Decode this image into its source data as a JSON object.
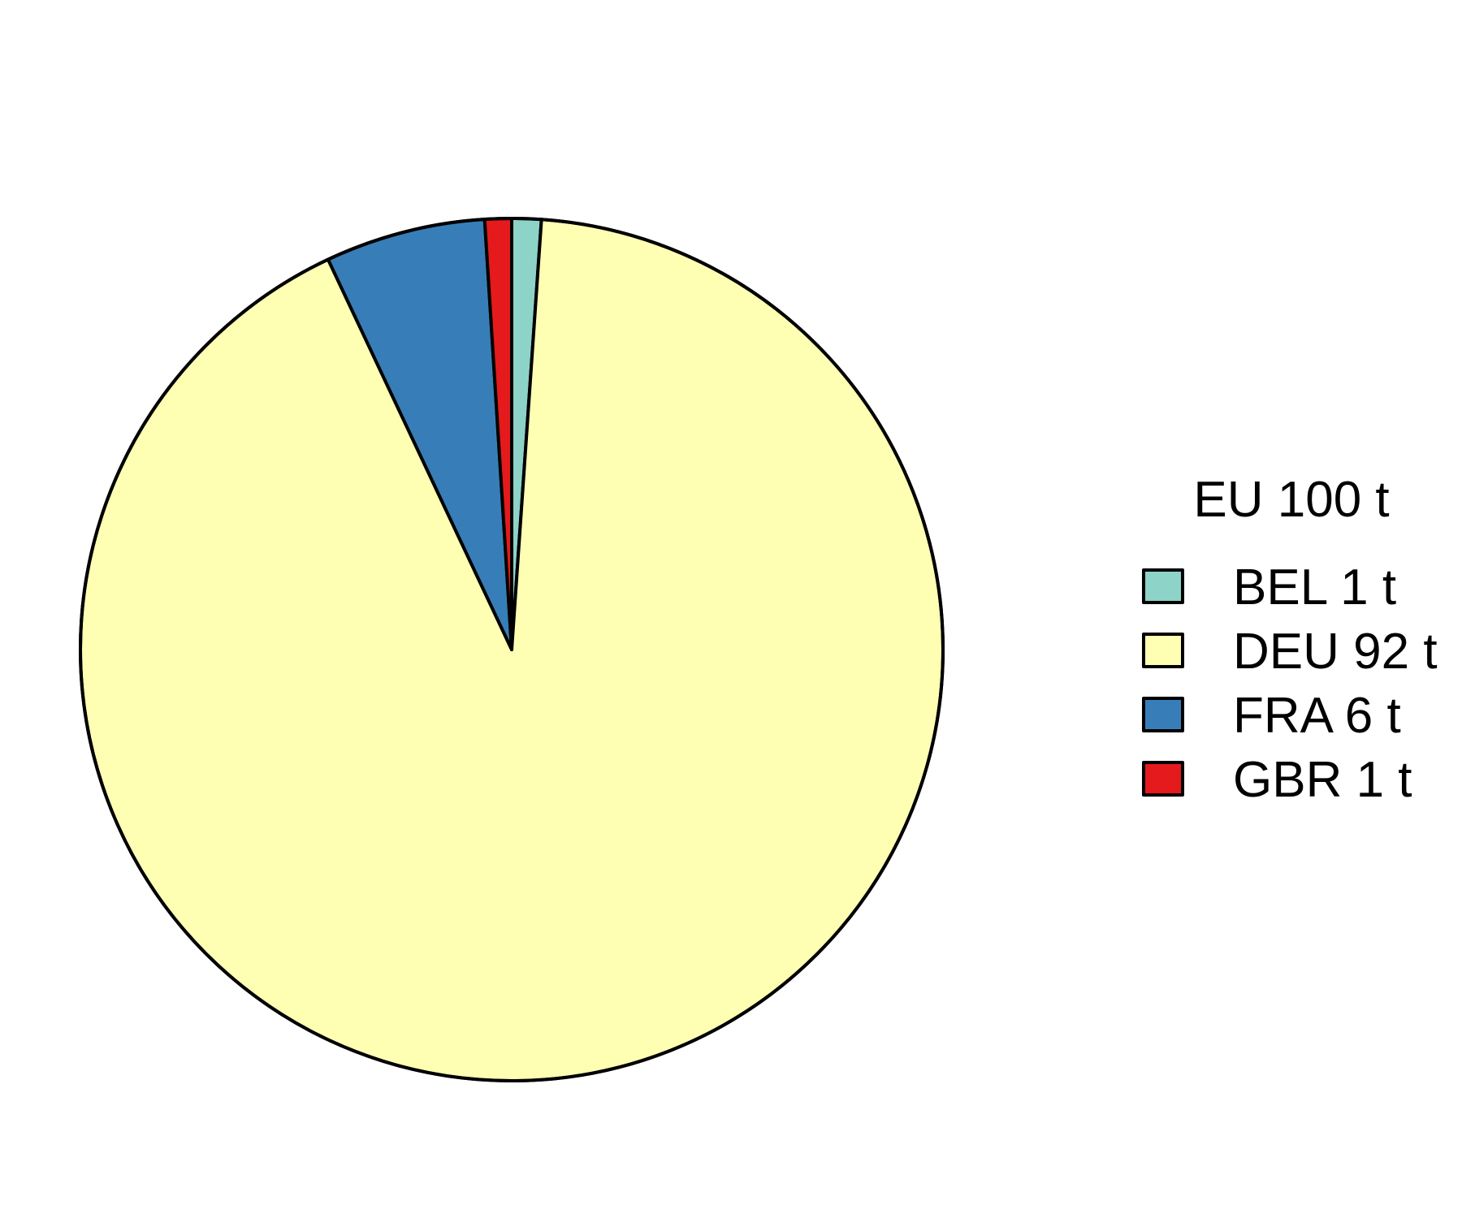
{
  "chart_data": {
    "type": "pie",
    "legend_title": "EU 100 t",
    "legend_position": "right",
    "start": "top",
    "direction": "clockwise",
    "slices": [
      {
        "label": "BEL 1 t",
        "value": 1.1,
        "color": "#8DD3C7"
      },
      {
        "label": "DEU 92 t",
        "value": 91.9,
        "color": "#FFFFB3"
      },
      {
        "label": "FRA 6 t",
        "value": 6.0,
        "color": "#377EB8"
      },
      {
        "label": "GBR 1 t",
        "value": 1.0,
        "color": "#E41A1C"
      }
    ]
  }
}
